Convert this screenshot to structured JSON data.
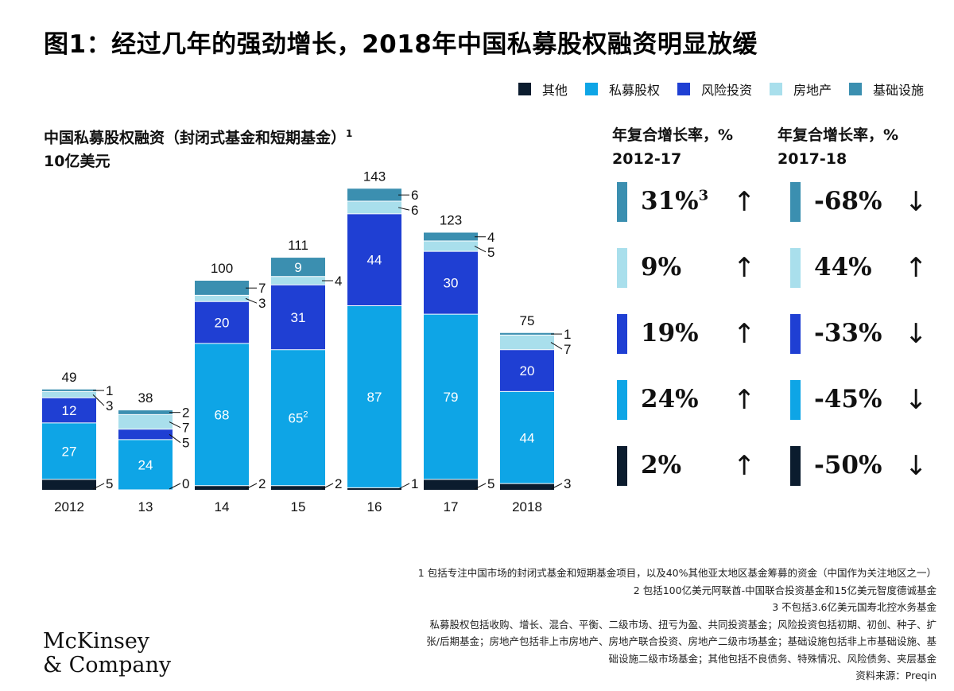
{
  "title": "图1：经过几年的强劲增长，2018年中国私募股权融资明显放缓",
  "legend": [
    {
      "label": "其他",
      "color": "#0b1c2e"
    },
    {
      "label": "私募股权",
      "color": "#0ea5e6"
    },
    {
      "label": "风险投资",
      "color": "#1f3fd3"
    },
    {
      "label": "房地产",
      "color": "#a9dfec"
    },
    {
      "label": "基础设施",
      "color": "#3b8fb0"
    }
  ],
  "subtitle": {
    "line1": "中国私募股权融资（封闭式基金和短期基金）",
    "footnote_mark": "1",
    "line2": "10亿美元"
  },
  "chart_data": {
    "type": "bar",
    "stacked": true,
    "categories": [
      "2012",
      "13",
      "14",
      "15",
      "16",
      "17",
      "2018"
    ],
    "series": [
      {
        "name": "其他",
        "color": "#0b1c2e",
        "values": [
          5,
          0,
          2,
          2,
          1,
          5,
          3
        ]
      },
      {
        "name": "私募股权",
        "color": "#0ea5e6",
        "values": [
          27,
          24,
          68,
          65,
          87,
          79,
          44
        ]
      },
      {
        "name": "风险投资",
        "color": "#1f3fd3",
        "values": [
          12,
          5,
          20,
          31,
          44,
          30,
          20
        ]
      },
      {
        "name": "房地产",
        "color": "#a9dfec",
        "values": [
          3,
          7,
          3,
          4,
          6,
          5,
          7
        ]
      },
      {
        "name": "基础设施",
        "color": "#3b8fb0",
        "values": [
          1,
          2,
          7,
          9,
          6,
          4,
          1
        ]
      }
    ],
    "totals": [
      49,
      38,
      100,
      111,
      143,
      123,
      75
    ],
    "annotations": [
      {
        "category": "15",
        "series": "私募股权",
        "note": "2"
      }
    ],
    "ylabel": "10亿美元",
    "ylim": [
      0,
      150
    ],
    "grid": false
  },
  "growth": {
    "col1_title": [
      "年复合增长率，%",
      "2012-17"
    ],
    "col2_title": [
      "年复合增长率，%",
      "2017-18"
    ],
    "rows": [
      {
        "color": "#3b8fb0",
        "v1": "31%",
        "v1_sup": "3",
        "a1": "↑",
        "v2": "-68%",
        "a2": "↓"
      },
      {
        "color": "#a9dfec",
        "v1": "9%",
        "v1_sup": "",
        "a1": "↑",
        "v2": "44%",
        "a2": "↑"
      },
      {
        "color": "#1f3fd3",
        "v1": "19%",
        "v1_sup": "",
        "a1": "↑",
        "v2": "-33%",
        "a2": "↓"
      },
      {
        "color": "#0ea5e6",
        "v1": "24%",
        "v1_sup": "",
        "a1": "↑",
        "v2": "-45%",
        "a2": "↓"
      },
      {
        "color": "#0b1c2e",
        "v1": "2%",
        "v1_sup": "",
        "a1": "↑",
        "v2": "-50%",
        "a2": "↓"
      }
    ]
  },
  "footnotes": [
    "1 包括专注中国市场的封闭式基金和短期基金项目，以及40%其他亚太地区基金筹募的资金（中国作为关注地区之一）",
    "2 包括100亿美元阿联酋-中国联合投资基金和15亿美元智度德诚基金",
    "3 不包括3.6亿美元国寿北控水务基金",
    "私募股权包括收购、增长、混合、平衡、二级市场、扭亏为盈、共同投资基金；风险投资包括初期、初创、种子、扩",
    "张/后期基金；房地产包括非上市房地产、房地产联合投资、房地产二级市场基金；基础设施包括非上市基础设施、基",
    "础设施二级市场基金；其他包括不良债务、特殊情况、风险债务、夹层基金",
    "资料来源：Preqin"
  ],
  "logo": [
    "McKinsey",
    "& Company"
  ]
}
